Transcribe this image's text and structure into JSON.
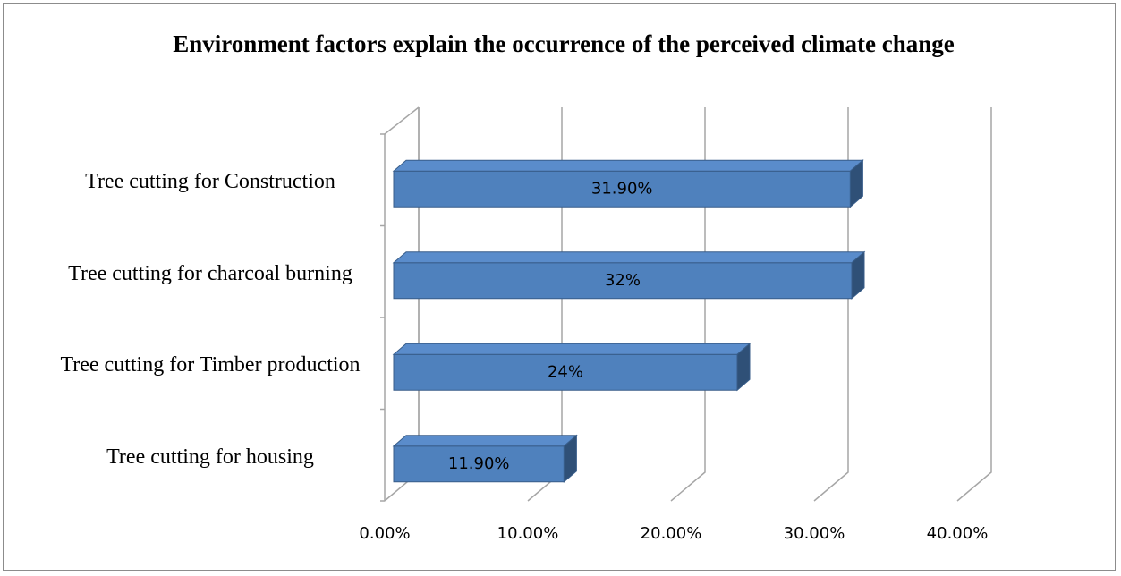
{
  "chart_data": {
    "type": "bar",
    "orientation": "horizontal",
    "title": "Environment factors explain the occurrence of the perceived climate change",
    "categories": [
      "Tree cutting for Construction",
      "Tree cutting for charcoal burning",
      "Tree cutting for Timber production",
      "Tree cutting for housing"
    ],
    "values": [
      31.9,
      32,
      24,
      11.9
    ],
    "value_labels": [
      "31.90%",
      "32%",
      "24%",
      "11.90%"
    ],
    "color": "#4f81bd",
    "xlim": [
      0,
      40
    ],
    "xticks": [
      {
        "value": 0,
        "label": "0.00%"
      },
      {
        "value": 10,
        "label": "10.00%"
      },
      {
        "value": 20,
        "label": "20.00%"
      },
      {
        "value": 30,
        "label": "30.00%"
      },
      {
        "value": 40,
        "label": "40.00%"
      }
    ],
    "grid": true
  }
}
